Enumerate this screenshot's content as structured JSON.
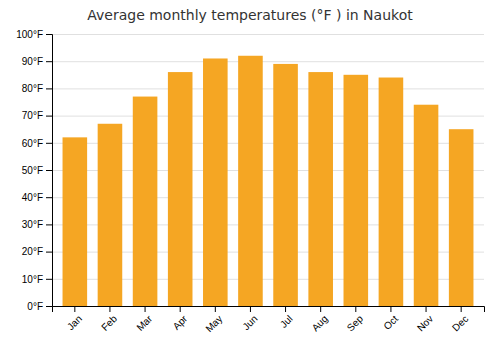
{
  "chart_data": {
    "type": "bar",
    "title": "Average monthly temperatures (°F ) in Naukot",
    "categories": [
      "Jan",
      "Feb",
      "Mar",
      "Apr",
      "May",
      "Jun",
      "Jul",
      "Aug",
      "Sep",
      "Oct",
      "Nov",
      "Dec"
    ],
    "values": [
      62,
      67,
      77,
      86,
      91,
      92,
      89,
      86,
      85,
      84,
      74,
      65
    ],
    "color": "#F5A623",
    "ylim": [
      0,
      100
    ],
    "yticks": [
      {
        "value": 0,
        "label": "0°F"
      },
      {
        "value": 10,
        "label": "10°F"
      },
      {
        "value": 20,
        "label": "20°F"
      },
      {
        "value": 30,
        "label": "30°F"
      },
      {
        "value": 40,
        "label": "40°F"
      },
      {
        "value": 50,
        "label": "50°F"
      },
      {
        "value": 60,
        "label": "60°F"
      },
      {
        "value": 70,
        "label": "70°F"
      },
      {
        "value": 80,
        "label": "80°F"
      },
      {
        "value": 90,
        "label": "90°F"
      },
      {
        "value": 100,
        "label": "100°F"
      }
    ],
    "grid": true
  }
}
